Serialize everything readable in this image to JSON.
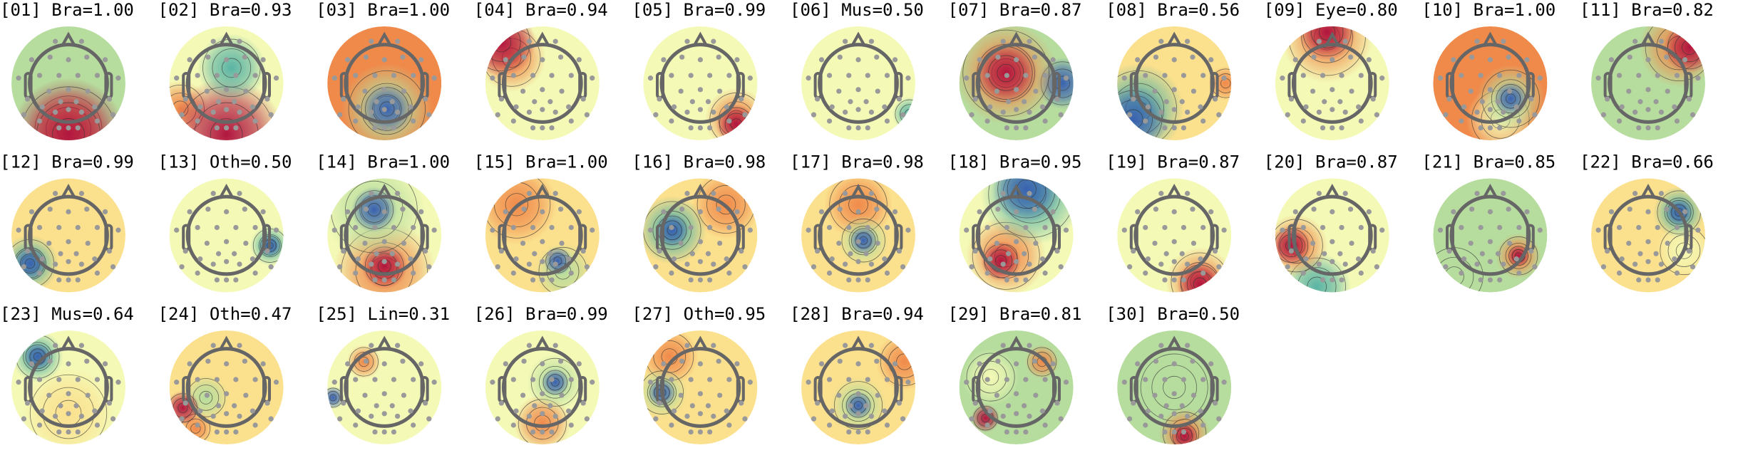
{
  "colors": {
    "default_title": "#000000",
    "highlight_title": "#1e88f0",
    "head_outline": "#666666",
    "sensor": "#999999",
    "contour": "#333333"
  },
  "colormap": [
    "#b2163f",
    "#f08a4b",
    "#fbe08d",
    "#f4f9b6",
    "#b6dd9e",
    "#5ab4a5",
    "#3a62b0"
  ],
  "components": [
    {
      "label": "[01] Bra=1.00",
      "highlight": false
    },
    {
      "label": "[02] Bra=0.93",
      "highlight": false
    },
    {
      "label": "[03] Bra=1.00",
      "highlight": false
    },
    {
      "label": "[04] Bra=0.94",
      "highlight": false
    },
    {
      "label": "[05] Bra=0.99",
      "highlight": false
    },
    {
      "label": "[06] Mus=0.50",
      "highlight": false
    },
    {
      "label": "[07] Bra=0.87",
      "highlight": false
    },
    {
      "label": "[08] Bra=0.56",
      "highlight": false
    },
    {
      "label": "[09] Eye=0.80",
      "highlight": true
    },
    {
      "label": "[10] Bra=1.00",
      "highlight": false
    },
    {
      "label": "[11] Bra=0.82",
      "highlight": false
    },
    {
      "label": "[12] Bra=0.99",
      "highlight": false
    },
    {
      "label": "[13] Oth=0.50",
      "highlight": false
    },
    {
      "label": "[14] Bra=1.00",
      "highlight": false
    },
    {
      "label": "[15] Bra=1.00",
      "highlight": false
    },
    {
      "label": "[16] Bra=0.98",
      "highlight": false
    },
    {
      "label": "[17] Bra=0.98",
      "highlight": false
    },
    {
      "label": "[18] Bra=0.95",
      "highlight": false
    },
    {
      "label": "[19] Bra=0.87",
      "highlight": false
    },
    {
      "label": "[20] Bra=0.87",
      "highlight": false
    },
    {
      "label": "[21] Bra=0.85",
      "highlight": false
    },
    {
      "label": "[22] Bra=0.66",
      "highlight": false
    },
    {
      "label": "[23] Mus=0.64",
      "highlight": false
    },
    {
      "label": "[24] Oth=0.47",
      "highlight": false
    },
    {
      "label": "[25] Lin=0.31",
      "highlight": false
    },
    {
      "label": "[26] Bra=0.99",
      "highlight": false
    },
    {
      "label": "[27] Oth=0.95",
      "highlight": false
    },
    {
      "label": "[28] Bra=0.94",
      "highlight": false
    },
    {
      "label": "[29] Bra=0.81",
      "highlight": false
    },
    {
      "label": "[30] Bra=0.50",
      "highlight": false
    }
  ]
}
